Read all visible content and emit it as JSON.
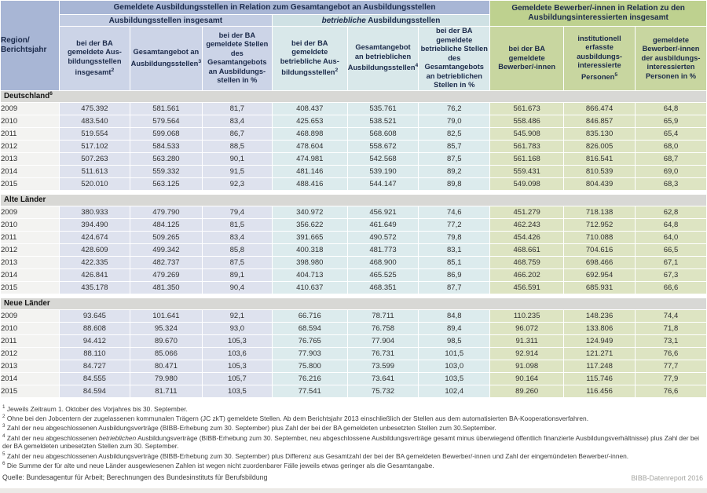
{
  "table": {
    "corner": "Region/\nBerichtsjahr",
    "group1": "Gemeldete Ausbildungsstellen in Relation zum Gesamtangebot an Ausbildungsstellen",
    "group2": "Gemeldete Bewerber/-innen in Relation zu den\nAusbildungsinteressierten insgesamt",
    "sub1": "Ausbildungsstellen insgesamt",
    "sub2_italic": "betriebliche",
    "sub2_rest": " Ausbildungsstellen",
    "columns": [
      {
        "text": "bei der BA\ngemeldete Aus-\nbildungsstellen\ninsgesamt",
        "sup": "2"
      },
      {
        "text": "Gesamtangebot an\nAusbildungsstellen",
        "sup": "3"
      },
      {
        "text": "bei der BA\ngemeldete Stellen\ndes Gesamtangebots\nan Ausbildungs-\nstellen in %",
        "sup": ""
      },
      {
        "text": "bei der BA\ngemeldete\nbetriebliche Aus-\nbildungsstellen",
        "sup": "2"
      },
      {
        "text": "Gesamtangebot\nan betrieblichen\nAusbildungsstellen",
        "sup": "4"
      },
      {
        "text": "bei der BA gemeldete\nbetriebliche Stellen\ndes Gesamtangebots\nan betrieblichen\nStellen in %",
        "sup": ""
      },
      {
        "text": "bei der BA\ngemeldete\nBewerber/-innen",
        "sup": ""
      },
      {
        "text": "institutionell\nerfasste\nausbildungs-\ninteressierte\nPersonen",
        "sup": "5"
      },
      {
        "text": "gemeldete\nBewerber/-innen\nder ausbildungs-\ninteressierten\nPersonen in %",
        "sup": ""
      }
    ],
    "sections": [
      {
        "label": "Deutschland",
        "sup": "6",
        "rows": [
          [
            "2009",
            "475.392",
            "581.561",
            "81,7",
            "408.437",
            "535.761",
            "76,2",
            "561.673",
            "866.474",
            "64,8"
          ],
          [
            "2010",
            "483.540",
            "579.564",
            "83,4",
            "425.653",
            "538.521",
            "79,0",
            "558.486",
            "846.857",
            "65,9"
          ],
          [
            "2011",
            "519.554",
            "599.068",
            "86,7",
            "468.898",
            "568.608",
            "82,5",
            "545.908",
            "835.130",
            "65,4"
          ],
          [
            "2012",
            "517.102",
            "584.533",
            "88,5",
            "478.604",
            "558.672",
            "85,7",
            "561.783",
            "826.005",
            "68,0"
          ],
          [
            "2013",
            "507.263",
            "563.280",
            "90,1",
            "474.981",
            "542.568",
            "87,5",
            "561.168",
            "816.541",
            "68,7"
          ],
          [
            "2014",
            "511.613",
            "559.332",
            "91,5",
            "481.146",
            "539.190",
            "89,2",
            "559.431",
            "810.539",
            "69,0"
          ],
          [
            "2015",
            "520.010",
            "563.125",
            "92,3",
            "488.416",
            "544.147",
            "89,8",
            "549.098",
            "804.439",
            "68,3"
          ]
        ]
      },
      {
        "label": "Alte Länder",
        "sup": "",
        "rows": [
          [
            "2009",
            "380.933",
            "479.790",
            "79,4",
            "340.972",
            "456.921",
            "74,6",
            "451.279",
            "718.138",
            "62,8"
          ],
          [
            "2010",
            "394.490",
            "484.125",
            "81,5",
            "356.622",
            "461.649",
            "77,2",
            "462.243",
            "712.952",
            "64,8"
          ],
          [
            "2011",
            "424.674",
            "509.265",
            "83,4",
            "391.665",
            "490.572",
            "79,8",
            "454.426",
            "710.088",
            "64,0"
          ],
          [
            "2012",
            "428.609",
            "499.342",
            "85,8",
            "400.318",
            "481.773",
            "83,1",
            "468.661",
            "704.616",
            "66,5"
          ],
          [
            "2013",
            "422.335",
            "482.737",
            "87,5",
            "398.980",
            "468.900",
            "85,1",
            "468.759",
            "698.466",
            "67,1"
          ],
          [
            "2014",
            "426.841",
            "479.269",
            "89,1",
            "404.713",
            "465.525",
            "86,9",
            "466.202",
            "692.954",
            "67,3"
          ],
          [
            "2015",
            "435.178",
            "481.350",
            "90,4",
            "410.637",
            "468.351",
            "87,7",
            "456.591",
            "685.931",
            "66,6"
          ]
        ]
      },
      {
        "label": "Neue Länder",
        "sup": "",
        "rows": [
          [
            "2009",
            "93.645",
            "101.641",
            "92,1",
            "66.716",
            "78.711",
            "84,8",
            "110.235",
            "148.236",
            "74,4"
          ],
          [
            "2010",
            "88.608",
            "95.324",
            "93,0",
            "68.594",
            "76.758",
            "89,4",
            "96.072",
            "133.806",
            "71,8"
          ],
          [
            "2011",
            "94.412",
            "89.670",
            "105,3",
            "76.765",
            "77.904",
            "98,5",
            "91.311",
            "124.949",
            "73,1"
          ],
          [
            "2012",
            "88.110",
            "85.066",
            "103,6",
            "77.903",
            "76.731",
            "101,5",
            "92.914",
            "121.271",
            "76,6"
          ],
          [
            "2013",
            "84.727",
            "80.471",
            "105,3",
            "75.800",
            "73.599",
            "103,0",
            "91.098",
            "117.248",
            "77,7"
          ],
          [
            "2014",
            "84.555",
            "79.980",
            "105,7",
            "76.216",
            "73.641",
            "103,5",
            "90.164",
            "115.746",
            "77,9"
          ],
          [
            "2015",
            "84.594",
            "81.711",
            "103,5",
            "77.541",
            "75.732",
            "102,4",
            "89.260",
            "116.456",
            "76,6"
          ]
        ]
      }
    ]
  },
  "footnotes": [
    {
      "sup": "1",
      "pre": "Jeweils Zeitraum 1. Oktober des Vorjahres bis 30. September.",
      "italic": "",
      "post": ""
    },
    {
      "sup": "2",
      "pre": "Ohne bei den Jobcentern der zugelassenen kommunalen Trägern (JC zkT) gemeldete Stellen. Ab dem Berichtsjahr 2013 einschließlich der Stellen aus dem automatisierten BA-Kooperationsverfahren.",
      "italic": "",
      "post": ""
    },
    {
      "sup": "3",
      "pre": "Zahl der neu abgeschlossenen Ausbildungsverträge (BIBB-Erhebung zum 30. September) plus Zahl der bei der BA gemeldeten unbesetzten Stellen zum 30.September.",
      "italic": "",
      "post": ""
    },
    {
      "sup": "4",
      "pre": "Zahl der neu abgeschlossenen ",
      "italic": "betrieblichen",
      "post": " Ausbildungsverträge (BIBB-Erhebung zum 30. September, neu abgeschlossene Ausbildungsverträge gesamt minus überwiegend öffentlich finanzierte Ausbildungsverhältnisse) plus Zahl der bei der BA gemeldeten unbesetzten Stellen zum 30. September.",
      "postbreak": true
    },
    {
      "sup": "5",
      "pre": "Zahl der neu abgeschlossenen Ausbildungsverträge (BIBB-Erhebung zum 30. September) plus Differenz aus Gesamtzahl der bei der BA gemeldeten Bewerber/-innen und Zahl der eingemündeten Bewerber/-innen.",
      "italic": "",
      "post": ""
    },
    {
      "sup": "6",
      "pre": "Die Summe der für alte und neue Länder ausgewiesenen Zahlen ist wegen nicht zuordenbarer Fälle jeweils etwas geringer als die Gesamtangabe.",
      "italic": "",
      "post": ""
    }
  ],
  "source": "Quelle: Bundesagentur für Arbeit; Berechnungen des Bundesinstituts für Berufsbildung",
  "report": "BIBB-Datenreport 2016"
}
